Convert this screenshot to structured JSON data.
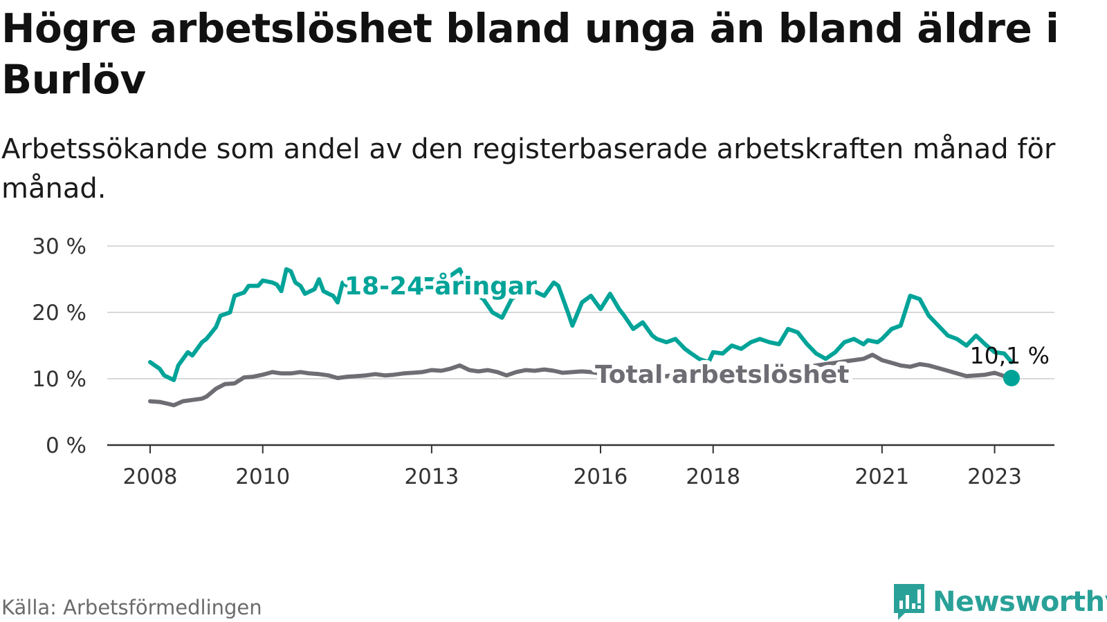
{
  "title": "Högre arbetslöshet bland unga än bland äldre i Burlöv",
  "subtitle": "Arbetssökande som andel av den registerbaserade arbetskraften månad för månad.",
  "source": "Källa: Arbetsförmedlingen",
  "brand": {
    "name": "Newsworthy",
    "icon": "newsworthy-logo-icon",
    "color": "#2aa198"
  },
  "chart_data": {
    "type": "line",
    "title": "Högre arbetslöshet bland unga än bland äldre i Burlöv",
    "xlabel": "",
    "ylabel": "",
    "xlim": [
      2008,
      2023.3
    ],
    "ylim": [
      0,
      30
    ],
    "grid": true,
    "y_ticks": [
      0,
      10,
      20,
      30
    ],
    "y_tick_labels": [
      "0 %",
      "10 %",
      "20 %",
      "30 %"
    ],
    "x_ticks": [
      2008,
      2010,
      2013,
      2016,
      2018,
      2021,
      2023
    ],
    "x_tick_labels": [
      "2008",
      "2010",
      "2013",
      "2016",
      "2018",
      "2021",
      "2023"
    ],
    "end_label": "10,1 %",
    "series": [
      {
        "name": "18-24-åringar",
        "color": "#00a398",
        "x": [
          2008.0,
          2008.17,
          2008.25,
          2008.42,
          2008.5,
          2008.67,
          2008.75,
          2008.92,
          2009.0,
          2009.17,
          2009.25,
          2009.42,
          2009.5,
          2009.67,
          2009.75,
          2009.92,
          2010.0,
          2010.17,
          2010.25,
          2010.33,
          2010.42,
          2010.5,
          2010.58,
          2010.67,
          2010.75,
          2010.92,
          2011.0,
          2011.08,
          2011.17,
          2011.25,
          2011.33,
          2011.42,
          2011.5,
          2011.58,
          2011.67,
          2011.83,
          2012.0,
          2012.17,
          2012.33,
          2012.5,
          2012.67,
          2012.83,
          2013.0,
          2013.17,
          2013.33,
          2013.5,
          2013.58,
          2013.75,
          2013.92,
          2014.08,
          2014.25,
          2014.42,
          2014.58,
          2014.75,
          2014.92,
          2015.0,
          2015.17,
          2015.25,
          2015.42,
          2015.5,
          2015.67,
          2015.83,
          2016.0,
          2016.17,
          2016.33,
          2016.42,
          2016.58,
          2016.75,
          2016.92,
          2017.0,
          2017.17,
          2017.33,
          2017.5,
          2017.58,
          2017.75,
          2017.92,
          2018.0,
          2018.17,
          2018.33,
          2018.5,
          2018.67,
          2018.83,
          2019.0,
          2019.17,
          2019.33,
          2019.5,
          2019.67,
          2019.83,
          2020.0,
          2020.17,
          2020.33,
          2020.5,
          2020.67,
          2020.75,
          2020.92,
          2021.0,
          2021.17,
          2021.33,
          2021.5,
          2021.67,
          2021.83,
          2022.0,
          2022.17,
          2022.33,
          2022.5,
          2022.67,
          2022.83,
          2023.0,
          2023.17,
          2023.3
        ],
        "values": [
          12.5,
          11.5,
          10.5,
          9.8,
          12.0,
          14.0,
          13.5,
          15.5,
          16.0,
          17.8,
          19.5,
          20.0,
          22.5,
          23.0,
          24.0,
          24.0,
          24.8,
          24.5,
          24.2,
          23.2,
          26.5,
          26.2,
          24.5,
          24.0,
          22.8,
          23.5,
          25.0,
          23.2,
          22.8,
          22.5,
          21.5,
          24.5,
          24.0,
          23.0,
          22.8,
          24.0,
          24.5,
          24.0,
          23.0,
          23.5,
          24.5,
          25.0,
          25.0,
          24.8,
          25.5,
          26.5,
          25.0,
          23.0,
          22.0,
          20.0,
          19.2,
          22.0,
          23.0,
          23.5,
          22.8,
          22.5,
          24.5,
          24.0,
          20.0,
          18.0,
          21.5,
          22.5,
          20.5,
          22.8,
          20.5,
          19.5,
          17.5,
          18.5,
          16.5,
          16.0,
          15.5,
          16.0,
          14.5,
          14.0,
          13.0,
          12.5,
          14.0,
          13.8,
          15.0,
          14.5,
          15.5,
          16.0,
          15.5,
          15.2,
          17.5,
          17.0,
          15.2,
          13.8,
          13.0,
          14.0,
          15.5,
          16.0,
          15.2,
          15.8,
          15.5,
          16.0,
          17.5,
          18.0,
          22.5,
          22.0,
          19.5,
          18.0,
          16.5,
          16.0,
          15.0,
          16.5,
          15.2,
          14.0,
          13.8,
          12.5
        ],
        "values_tail": []
      },
      {
        "name": "Total arbetslöshet",
        "color": "#6e6d74",
        "x": [
          2008.0,
          2008.17,
          2008.33,
          2008.42,
          2008.58,
          2008.75,
          2008.92,
          2009.0,
          2009.17,
          2009.33,
          2009.5,
          2009.67,
          2009.83,
          2010.0,
          2010.17,
          2010.33,
          2010.5,
          2010.67,
          2010.83,
          2011.0,
          2011.17,
          2011.33,
          2011.5,
          2011.67,
          2011.83,
          2012.0,
          2012.17,
          2012.33,
          2012.5,
          2012.67,
          2012.83,
          2013.0,
          2013.17,
          2013.33,
          2013.5,
          2013.67,
          2013.83,
          2014.0,
          2014.17,
          2014.33,
          2014.5,
          2014.67,
          2014.83,
          2015.0,
          2015.17,
          2015.33,
          2015.5,
          2015.67,
          2015.83,
          2016.0,
          2016.17,
          2016.33,
          2016.5,
          2016.67,
          2016.83,
          2017.0,
          2017.17,
          2017.33,
          2017.5,
          2017.67,
          2017.83,
          2018.0,
          2018.17,
          2018.33,
          2018.5,
          2018.67,
          2018.83,
          2019.0,
          2019.17,
          2019.33,
          2019.5,
          2019.67,
          2019.83,
          2020.0,
          2020.17,
          2020.33,
          2020.5,
          2020.67,
          2020.83,
          2021.0,
          2021.17,
          2021.33,
          2021.5,
          2021.67,
          2021.83,
          2022.0,
          2022.17,
          2022.33,
          2022.5,
          2022.67,
          2022.83,
          2023.0,
          2023.17,
          2023.3
        ],
        "values": [
          6.6,
          6.5,
          6.2,
          6.0,
          6.6,
          6.8,
          7.0,
          7.3,
          8.5,
          9.2,
          9.3,
          10.2,
          10.3,
          10.6,
          11.0,
          10.8,
          10.8,
          11.0,
          10.8,
          10.7,
          10.5,
          10.1,
          10.3,
          10.4,
          10.5,
          10.7,
          10.5,
          10.6,
          10.8,
          10.9,
          11.0,
          11.3,
          11.2,
          11.5,
          12.0,
          11.3,
          11.1,
          11.3,
          11.0,
          10.5,
          11.0,
          11.3,
          11.2,
          11.4,
          11.2,
          10.9,
          11.0,
          11.1,
          11.0,
          10.8,
          10.5,
          10.5,
          10.4,
          10.6,
          10.5,
          10.2,
          10.4,
          10.6,
          10.8,
          10.7,
          10.5,
          10.8,
          11.0,
          10.9,
          11.2,
          11.5,
          11.2,
          10.9,
          11.0,
          11.3,
          11.6,
          11.8,
          12.0,
          12.2,
          12.4,
          12.6,
          12.8,
          13.0,
          13.6,
          12.8,
          12.4,
          12.0,
          11.8,
          12.2,
          12.0,
          11.6,
          11.2,
          10.8,
          10.4,
          10.5,
          10.6,
          10.9,
          10.4,
          10.1
        ]
      }
    ],
    "annotations": [
      {
        "text": "18-24-åringar",
        "series": "18-24-åringar"
      },
      {
        "text": "Total arbetslöshet",
        "series": "Total arbetslöshet"
      }
    ]
  }
}
